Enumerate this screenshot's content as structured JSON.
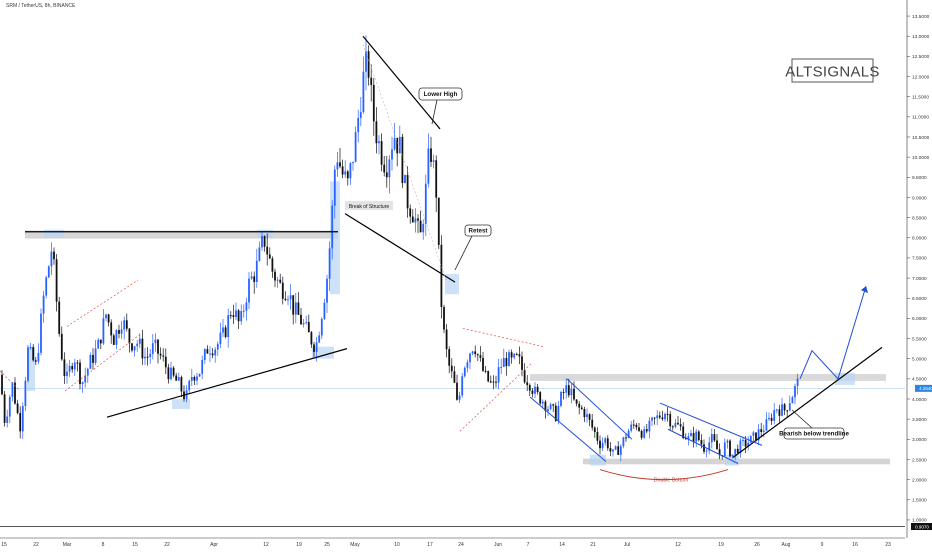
{
  "header": {
    "symbol_line": "SRM / TetherUS, 8h, BINANCE"
  },
  "watermark": "ALTSIGNALS",
  "price_labels": {
    "current": "4.2640",
    "bottom": "0.9070"
  },
  "annotations": {
    "lower_high": "Lower High",
    "retest": "Retest",
    "break_of_structure": "Break of Structure",
    "bearish_below_trendline": "Bearish below trendline",
    "double_bottom": "Double Bottom"
  },
  "colors": {
    "up": "#2962ff",
    "down": "#111111",
    "trend": "#000000",
    "channel": "#1e4fd8",
    "zone": "#c9c9c9",
    "highlight": "#b8d4f5",
    "double_bottom": "#c0392b",
    "dotted": "#e05050"
  },
  "chart_data": {
    "type": "candlestick",
    "title": "SRM / TetherUS, 8h, BINANCE",
    "y_axis": {
      "scale": "linear",
      "range": [
        0.8,
        13.7
      ],
      "ticks": [
        "13.5000",
        "13.0000",
        "12.5000",
        "12.0000",
        "11.5000",
        "11.0000",
        "10.5000",
        "10.0000",
        "9.5000",
        "9.0000",
        "8.5000",
        "8.0000",
        "7.5000",
        "7.0000",
        "6.5000",
        "6.0000",
        "5.5000",
        "5.0000",
        "4.5000",
        "4.0000",
        "3.5000",
        "3.0000",
        "2.5000",
        "2.0000",
        "1.5000",
        "1.0000"
      ]
    },
    "x_axis": {
      "ticks": [
        "15",
        "22",
        "Mar",
        "8",
        "15",
        "22",
        "Apr",
        "12",
        "19",
        "25",
        "May",
        "10",
        "17",
        "24",
        "Jun",
        "7",
        "14",
        "21",
        "Jul",
        "12",
        "19",
        "26",
        "Aug",
        "9",
        "16",
        "23"
      ]
    },
    "price_path": [
      [
        0,
        4.6
      ],
      [
        5,
        3.4
      ],
      [
        12,
        4.4
      ],
      [
        20,
        3.3
      ],
      [
        28,
        5.2
      ],
      [
        36,
        4.8
      ],
      [
        44,
        6.6
      ],
      [
        52,
        7.8
      ],
      [
        60,
        5.4
      ],
      [
        66,
        4.4
      ],
      [
        74,
        5.1
      ],
      [
        82,
        4.4
      ],
      [
        90,
        4.9
      ],
      [
        98,
        5.3
      ],
      [
        106,
        6.1
      ],
      [
        114,
        5.5
      ],
      [
        122,
        6.0
      ],
      [
        130,
        5.4
      ],
      [
        138,
        5.4
      ],
      [
        146,
        5.0
      ],
      [
        154,
        5.3
      ],
      [
        162,
        5.0
      ],
      [
        170,
        4.6
      ],
      [
        178,
        4.4
      ],
      [
        186,
        4.0
      ],
      [
        192,
        4.6
      ],
      [
        200,
        4.7
      ],
      [
        208,
        5.3
      ],
      [
        216,
        5.3
      ],
      [
        224,
        5.6
      ],
      [
        232,
        6.3
      ],
      [
        240,
        5.8
      ],
      [
        248,
        6.8
      ],
      [
        256,
        7.2
      ],
      [
        264,
        8.0
      ],
      [
        272,
        7.2
      ],
      [
        280,
        6.8
      ],
      [
        288,
        6.7
      ],
      [
        294,
        6.2
      ],
      [
        300,
        6.0
      ],
      [
        308,
        5.6
      ],
      [
        316,
        5.3
      ],
      [
        322,
        6.2
      ],
      [
        328,
        7.2
      ],
      [
        332,
        8.6
      ],
      [
        336,
        10.2
      ],
      [
        342,
        9.6
      ],
      [
        348,
        9.3
      ],
      [
        356,
        10.5
      ],
      [
        362,
        11.8
      ],
      [
        368,
        12.4
      ],
      [
        372,
        11.2
      ],
      [
        378,
        10.4
      ],
      [
        386,
        9.8
      ],
      [
        394,
        10.6
      ],
      [
        400,
        10.2
      ],
      [
        406,
        9.0
      ],
      [
        414,
        8.6
      ],
      [
        420,
        7.9
      ],
      [
        426,
        9.2
      ],
      [
        430,
        10.3
      ],
      [
        436,
        9.3
      ],
      [
        440,
        6.8
      ],
      [
        444,
        5.6
      ],
      [
        448,
        4.9
      ],
      [
        454,
        4.4
      ],
      [
        458,
        3.7
      ],
      [
        462,
        4.7
      ],
      [
        468,
        5.1
      ],
      [
        474,
        5.4
      ],
      [
        480,
        4.9
      ],
      [
        486,
        4.5
      ],
      [
        494,
        4.3
      ],
      [
        500,
        4.8
      ],
      [
        506,
        5.0
      ],
      [
        512,
        4.9
      ],
      [
        518,
        5.0
      ],
      [
        524,
        4.6
      ],
      [
        530,
        4.4
      ],
      [
        536,
        4.1
      ],
      [
        542,
        4.0
      ],
      [
        548,
        3.8
      ],
      [
        556,
        3.6
      ],
      [
        562,
        4.1
      ],
      [
        568,
        4.3
      ],
      [
        576,
        3.8
      ],
      [
        584,
        3.7
      ],
      [
        592,
        3.3
      ],
      [
        600,
        2.9
      ],
      [
        606,
        3.0
      ],
      [
        612,
        2.6
      ],
      [
        620,
        2.8
      ],
      [
        628,
        3.2
      ],
      [
        636,
        3.4
      ],
      [
        644,
        3.1
      ],
      [
        652,
        3.4
      ],
      [
        660,
        3.6
      ],
      [
        666,
        3.7
      ],
      [
        672,
        3.4
      ],
      [
        680,
        3.3
      ],
      [
        688,
        3.0
      ],
      [
        696,
        3.1
      ],
      [
        704,
        2.8
      ],
      [
        712,
        3.0
      ],
      [
        720,
        2.6
      ],
      [
        726,
        2.9
      ],
      [
        732,
        2.6
      ],
      [
        738,
        2.8
      ],
      [
        746,
        2.9
      ],
      [
        752,
        3.0
      ],
      [
        760,
        3.2
      ],
      [
        768,
        3.4
      ],
      [
        776,
        3.8
      ],
      [
        784,
        3.7
      ],
      [
        790,
        4.0
      ],
      [
        796,
        4.3
      ],
      [
        800,
        4.5
      ]
    ],
    "projection": [
      [
        800,
        4.5
      ],
      [
        812,
        5.2
      ],
      [
        838,
        4.5
      ],
      [
        866,
        6.8
      ]
    ]
  }
}
